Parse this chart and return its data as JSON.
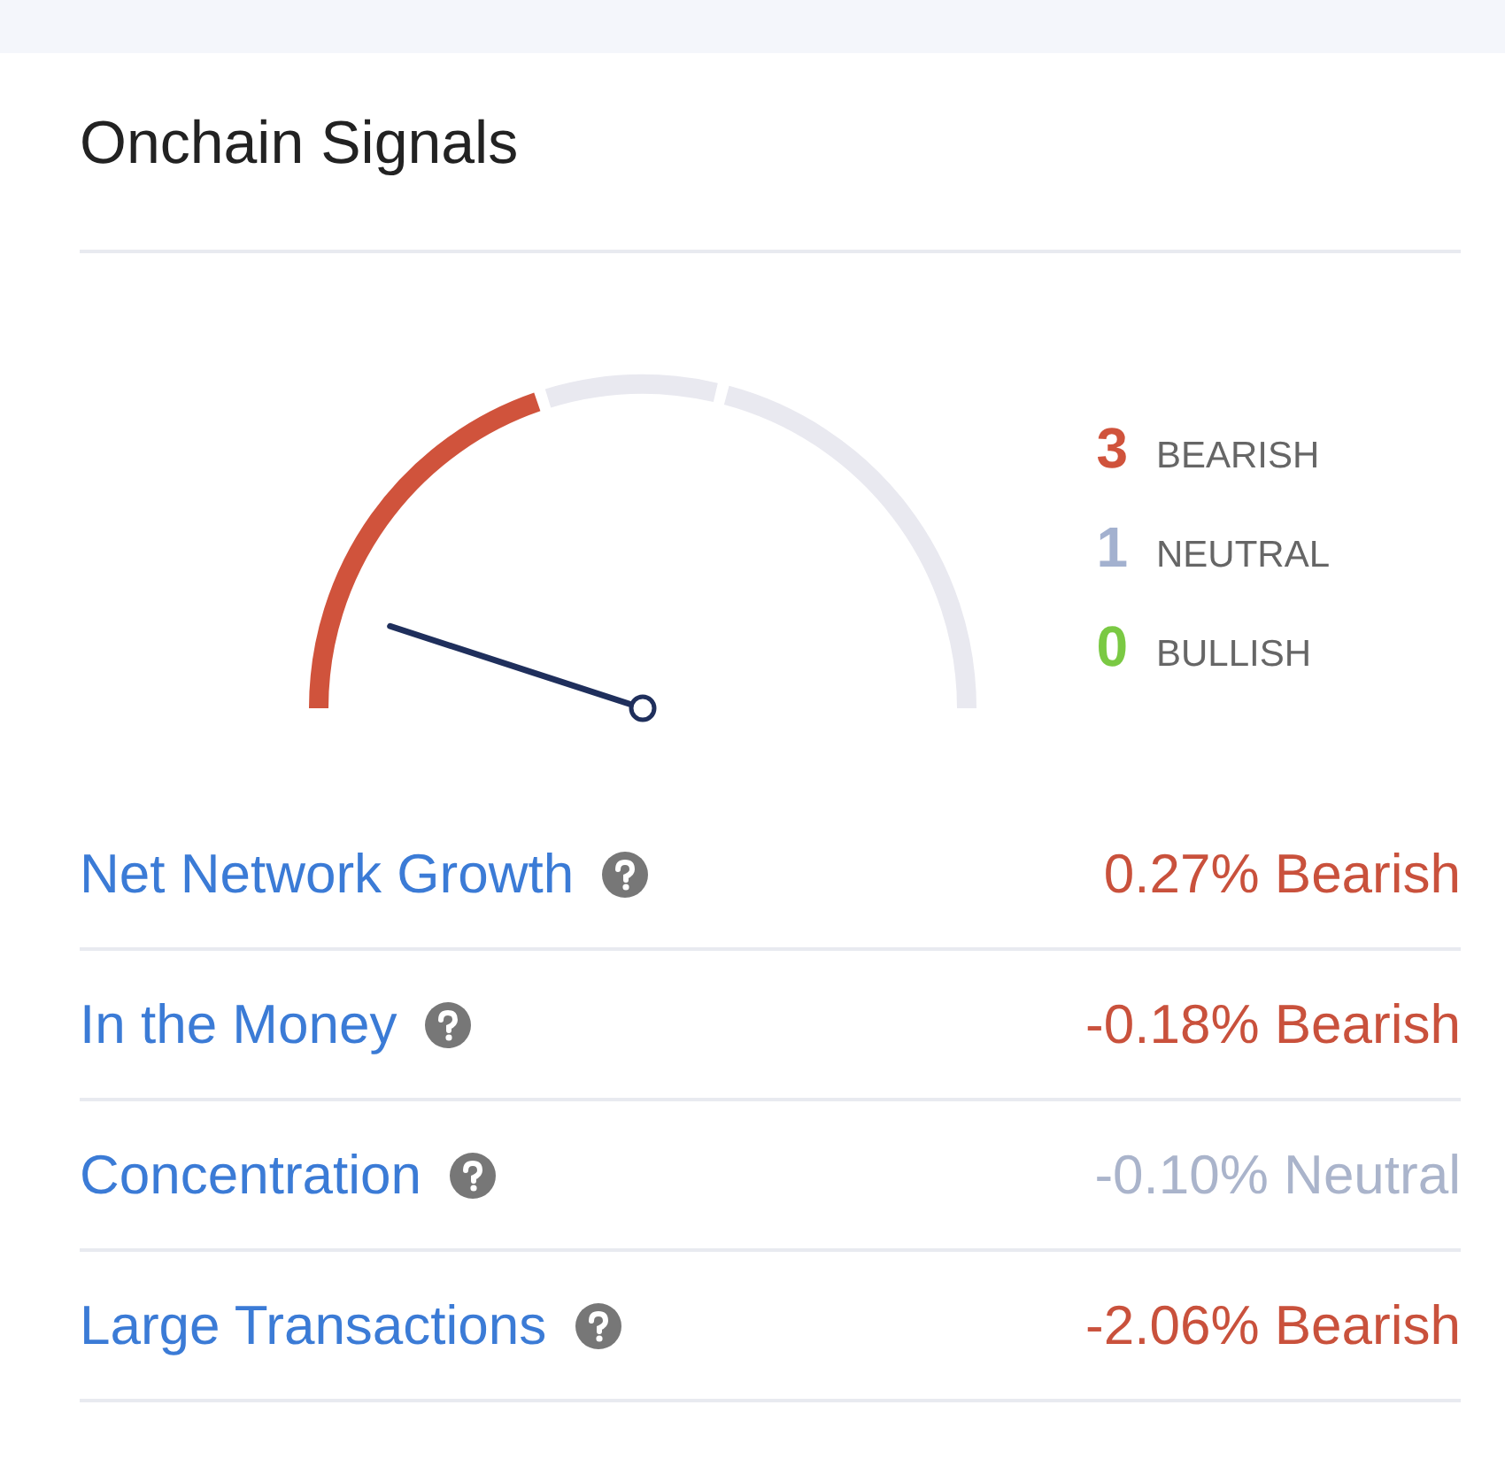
{
  "chart_data": [
    {
      "type": "other",
      "title": "Onchain Signals",
      "categories": [
        "BEARISH",
        "NEUTRAL",
        "BULLISH"
      ],
      "values": [
        3,
        1,
        0
      ],
      "colors": [
        "#d0533c",
        "#a3b1cf",
        "#7ac943"
      ],
      "data_labels": true
    },
    {
      "type": "other",
      "categories": [
        "Net Network Growth",
        "In the Money",
        "Concentration",
        "Large Transactions"
      ],
      "value_labels": [
        "0.27% Bearish",
        "-0.18% Bearish",
        "-0.10% Neutral",
        "-2.06% Bearish"
      ],
      "colors": [
        "#c9513c",
        "#c9513c",
        "#aab4cb",
        "#c9513c"
      ]
    }
  ]
}
